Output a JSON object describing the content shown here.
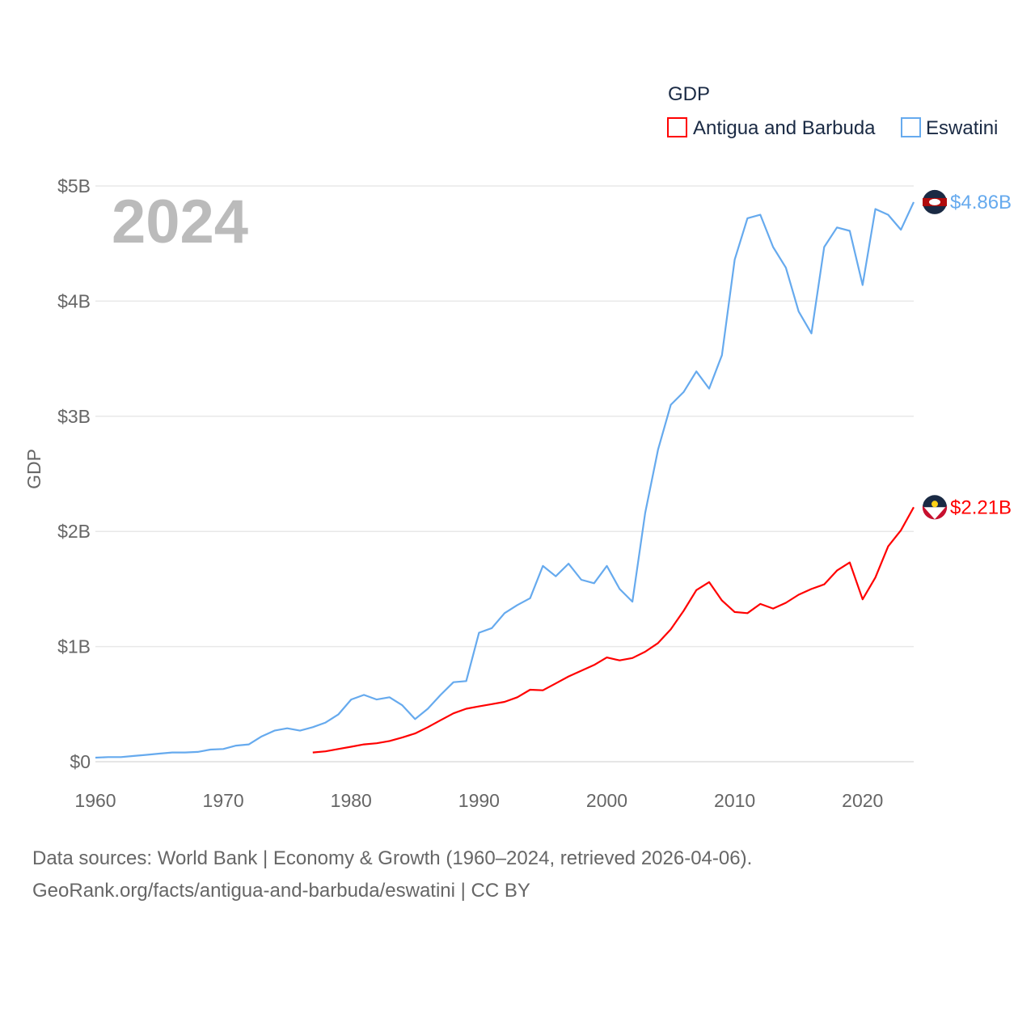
{
  "chart_data": {
    "type": "line",
    "title": "",
    "year_label": "2024",
    "legend_title": "GDP",
    "legend_position": "top-right",
    "xlabel": "",
    "ylabel": "GDP",
    "xlim": [
      1960,
      2024
    ],
    "ylim": [
      0,
      5
    ],
    "x_ticks": [
      1960,
      1970,
      1980,
      1990,
      2000,
      2010,
      2020
    ],
    "x_tick_labels": [
      "1960",
      "1970",
      "1980",
      "1990",
      "2000",
      "2010",
      "2020"
    ],
    "y_ticks": [
      0,
      1,
      2,
      3,
      4,
      5
    ],
    "y_tick_labels": [
      "$0",
      "$1B",
      "$2B",
      "$3B",
      "$4B",
      "$5B"
    ],
    "units": "USD billions",
    "grid": true,
    "series": [
      {
        "name": "Antigua and Barbuda",
        "color": "#ff0000",
        "end_label": "$2.21B",
        "start_year": 1977,
        "values": [
          0.08,
          0.09,
          0.11,
          0.13,
          0.15,
          0.16,
          0.18,
          0.21,
          0.245,
          0.3,
          0.36,
          0.42,
          0.46,
          0.48,
          0.5,
          0.52,
          0.56,
          0.625,
          0.62,
          0.68,
          0.74,
          0.79,
          0.84,
          0.905,
          0.88,
          0.9,
          0.955,
          1.03,
          1.15,
          1.31,
          1.49,
          1.56,
          1.4,
          1.3,
          1.29,
          1.37,
          1.33,
          1.38,
          1.45,
          1.5,
          1.54,
          1.66,
          1.73,
          1.41,
          1.6,
          1.87,
          2.01,
          2.21
        ]
      },
      {
        "name": "Eswatini",
        "color": "#66aaee",
        "end_label": "$4.86B",
        "start_year": 1960,
        "values": [
          0.035,
          0.04,
          0.04,
          0.05,
          0.06,
          0.07,
          0.08,
          0.08,
          0.085,
          0.105,
          0.11,
          0.14,
          0.15,
          0.22,
          0.27,
          0.29,
          0.27,
          0.3,
          0.34,
          0.41,
          0.54,
          0.58,
          0.54,
          0.56,
          0.49,
          0.37,
          0.46,
          0.58,
          0.69,
          0.7,
          1.12,
          1.16,
          1.29,
          1.36,
          1.42,
          1.7,
          1.61,
          1.72,
          1.58,
          1.55,
          1.7,
          1.5,
          1.39,
          2.16,
          2.71,
          3.1,
          3.21,
          3.39,
          3.24,
          3.53,
          4.36,
          4.72,
          4.75,
          4.47,
          4.29,
          3.91,
          3.72,
          4.47,
          4.64,
          4.61,
          4.14,
          4.8,
          4.75,
          4.62,
          4.86
        ]
      }
    ]
  },
  "footer": {
    "line1": "Data sources: World Bank | Economy & Growth (1960–2024, retrieved 2026-04-06).",
    "line2": "GeoRank.org/facts/antigua-and-barbuda/eswatini | CC BY"
  }
}
